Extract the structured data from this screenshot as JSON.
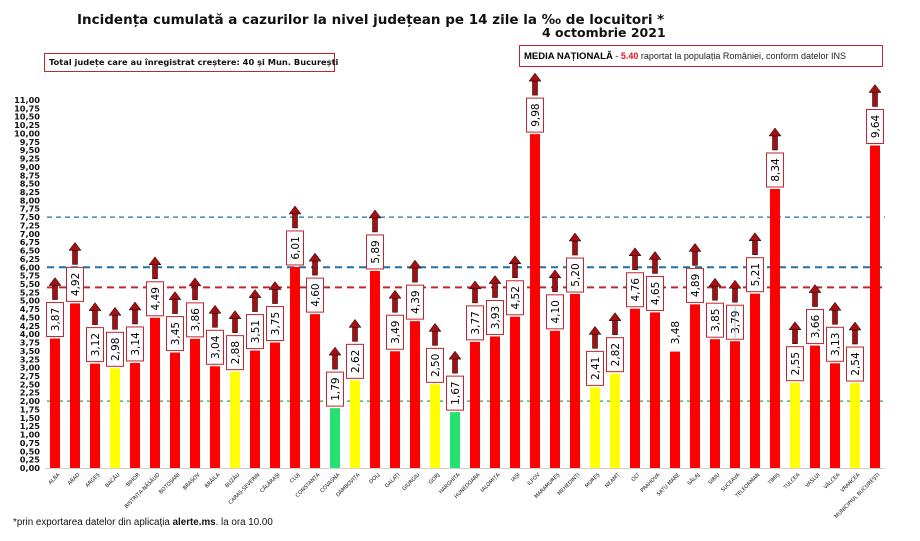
{
  "header": {
    "title": "Incidența cumulată a cazurilor la nivel județean pe 14 zile la ‰ de locuitori *",
    "date": "4 octombrie 2021"
  },
  "summary": {
    "total_text": "Total județe care au înregistrat creștere:  40 și Mun. București"
  },
  "national": {
    "label": "MEDIA NAȚIONALĂ",
    "dash": " - ",
    "value": "5.40",
    "suffix": " raportat la populația României, conform datelor INS"
  },
  "footnote": {
    "prefix": "*prin exportarea datelor din aplicația ",
    "app": "alerte.ms",
    "suffix": ". la ora 10.00"
  },
  "colors": {
    "red": "#ff0000",
    "yellow": "#ffff00",
    "green": "#26e070",
    "arrow": "#a50f12",
    "label_border": "#c0262d",
    "line_blue": "#1f6fa8",
    "line_red": "#c0262d",
    "line_green": "#2aa346"
  },
  "chart_data": {
    "type": "bar",
    "title": "Incidența cumulată a cazurilor la nivel județean pe 14 zile la ‰ de locuitori",
    "xlabel": "",
    "ylabel": "",
    "ylim": [
      0,
      11
    ],
    "y_ticks": [
      "0,00",
      "0,25",
      "0,50",
      "0,75",
      "1,00",
      "1,25",
      "1,50",
      "1,75",
      "2,00",
      "2,25",
      "2,50",
      "2,75",
      "3,00",
      "3,25",
      "3,50",
      "3,75",
      "4,00",
      "4,25",
      "4,50",
      "4,75",
      "5,00",
      "5,25",
      "5,50",
      "5,75",
      "6,00",
      "6,25",
      "6,50",
      "6,75",
      "7,00",
      "7,25",
      "7,50",
      "7,75",
      "8,00",
      "8,25",
      "8,50",
      "8,75",
      "9,00",
      "9,25",
      "9,50",
      "9,75",
      "10,00",
      "10,25",
      "10,50",
      "10,75",
      "11,00"
    ],
    "grid": false,
    "legend": "none",
    "categories": [
      "ALBA",
      "ARAD",
      "ARGEȘ",
      "BACĂU",
      "BIHOR",
      "BISTRIȚA-NĂSĂUD",
      "BOTOȘANI",
      "BRAȘOV",
      "BRĂILA",
      "BUZĂU",
      "CARAȘ-SEVERIN",
      "CĂLĂRAȘI",
      "CLUJ",
      "CONSTANȚA",
      "COVASNA",
      "DÂMBOVIȚA",
      "DOLJ",
      "GALAȚI",
      "GIURGIU",
      "GORJ",
      "HARGHITA",
      "HUNEDOARA",
      "IALOMIȚA",
      "IAȘI",
      "ILFOV",
      "MARAMUREȘ",
      "MEHEDINȚI",
      "MUREȘ",
      "NEAMȚ",
      "OLT",
      "PRAHOVA",
      "SATU MARE",
      "SĂLAJ",
      "SIBIU",
      "SUCEAVA",
      "TELEORMAN",
      "TIMIȘ",
      "TULCEA",
      "VASLUI",
      "VÂLCEA",
      "VRANCEA",
      "MUNICIPIUL BUCUREȘTI"
    ],
    "values": [
      3.87,
      4.92,
      3.12,
      2.98,
      3.14,
      4.49,
      3.45,
      3.86,
      3.04,
      2.88,
      3.51,
      3.75,
      6.01,
      4.6,
      1.79,
      2.62,
      5.89,
      3.49,
      4.39,
      2.5,
      1.67,
      3.77,
      3.93,
      4.52,
      9.98,
      4.1,
      5.2,
      2.41,
      2.82,
      4.76,
      4.65,
      3.48,
      4.89,
      3.85,
      3.79,
      5.21,
      8.34,
      2.55,
      3.66,
      3.13,
      2.54,
      9.64
    ],
    "value_labels": [
      "3,87",
      "4,92",
      "3,12",
      "2,98",
      "3,14",
      "4,49",
      "3,45",
      "3,86",
      "3,04",
      "2,88",
      "3,51",
      "3,75",
      "6,01",
      "4,60",
      "1,79",
      "2,62",
      "5,89",
      "3,49",
      "4,39",
      "2,50",
      "1,67",
      "3,77",
      "3,93",
      "4,52",
      "9,98",
      "4,10",
      "5,20",
      "2,41",
      "2,82",
      "4,76",
      "4,65",
      "3,48",
      "4,89",
      "3,85",
      "3,79",
      "5,21",
      "8,34",
      "2,55",
      "3,66",
      "3,13",
      "2,54",
      "9,64"
    ],
    "increase_arrow": [
      true,
      true,
      true,
      true,
      true,
      true,
      true,
      true,
      true,
      true,
      true,
      true,
      true,
      true,
      true,
      true,
      true,
      true,
      true,
      true,
      true,
      true,
      true,
      true,
      true,
      true,
      true,
      true,
      true,
      true,
      true,
      false,
      true,
      true,
      true,
      true,
      true,
      true,
      true,
      true,
      true,
      true
    ],
    "color_rule": "red if value >= 3, yellow if 2 <= value < 3, green if value < 2",
    "reference_lines": [
      {
        "value": 7.5,
        "color": "#1f6fa8",
        "style": "thin-dashed"
      },
      {
        "value": 6.0,
        "color": "#1f6fa8",
        "style": "thick-dashed"
      },
      {
        "value": 5.4,
        "color": "#c0262d",
        "style": "thick-dashed",
        "meaning": "media națională"
      },
      {
        "value": 2.0,
        "color": "#2aa346",
        "style": "dashed"
      }
    ]
  }
}
